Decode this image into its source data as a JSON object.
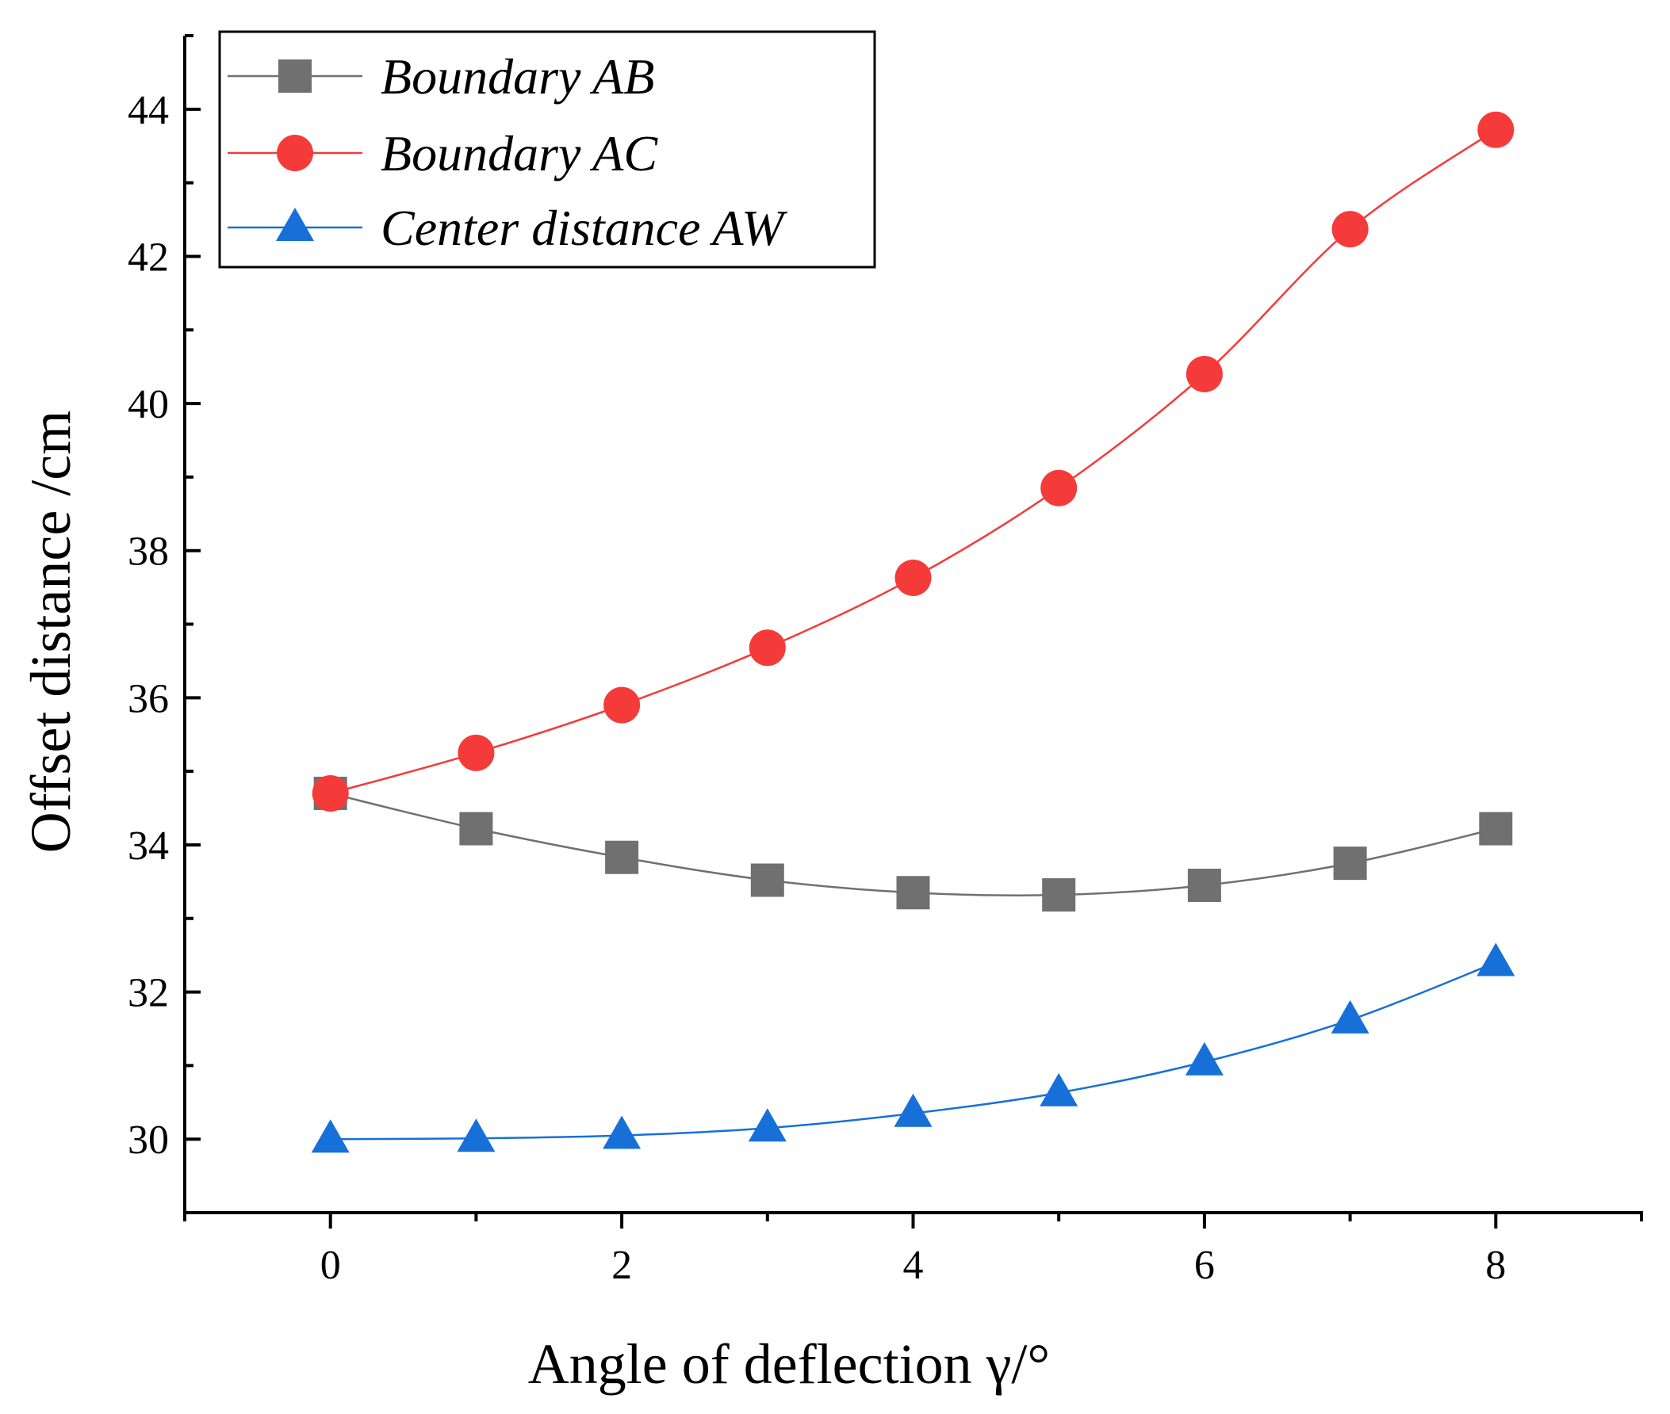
{
  "chart_data": {
    "type": "line",
    "xlabel": "Angle of deflection γ/°",
    "ylabel": "Offset distance /cm",
    "xlim": [
      -1,
      9
    ],
    "ylim": [
      29,
      45
    ],
    "x_ticks": [
      0,
      2,
      4,
      6,
      8
    ],
    "y_ticks": [
      30,
      32,
      34,
      36,
      38,
      40,
      42,
      44
    ],
    "x_tick_labels": [
      "0",
      "2",
      "4",
      "6",
      "8"
    ],
    "y_tick_labels": [
      "30",
      "32",
      "34",
      "36",
      "38",
      "40",
      "42",
      "44"
    ],
    "x": [
      0,
      1,
      2,
      3,
      4,
      5,
      6,
      7,
      8
    ],
    "legend_position": "top-left",
    "series": [
      {
        "name": "Boundary AB",
        "marker": "square",
        "color": "#707070",
        "values": [
          34.7,
          34.22,
          33.83,
          33.52,
          33.35,
          33.32,
          33.45,
          33.75,
          34.22
        ]
      },
      {
        "name": "Boundary AC",
        "marker": "circle",
        "color": "#f53a3a",
        "values": [
          34.7,
          35.25,
          35.9,
          36.68,
          37.63,
          38.85,
          40.4,
          42.37,
          43.72
        ]
      },
      {
        "name": "Center distance AW",
        "marker": "triangle",
        "color": "#1670d8",
        "values": [
          30.0,
          30.01,
          30.05,
          30.15,
          30.35,
          30.63,
          31.05,
          31.62,
          32.4
        ]
      }
    ]
  }
}
